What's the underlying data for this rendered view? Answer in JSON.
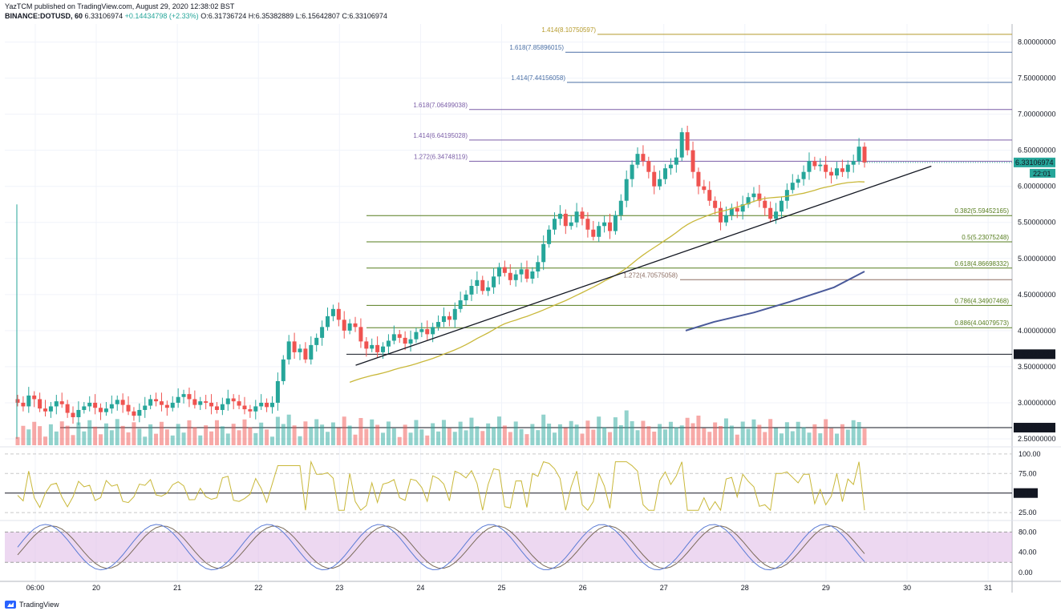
{
  "header": {
    "publisher": "YazTCM published on TradingView.com, August 29, 2020 12:38:02 BST",
    "symbol": "BINANCE:DOTUSD, 60",
    "last": "6.33106974",
    "change": "+0.14434798 (+2.33%)",
    "ohlc": "O:6.31736724 H:6.35382889 L:6.15642807 C:6.33106974"
  },
  "logo": {
    "text": "TradingView",
    "icon": "tradingview-logo-icon"
  },
  "colors": {
    "up": "#26a69a",
    "down": "#ef5350",
    "ma": "#c9b83a",
    "ma2": "#4a5a9a",
    "fib": "#567d1e",
    "ext_purple": "#7b5ea7",
    "ext_blue": "#4a6fa5",
    "ext_gold": "#b59a2a",
    "ext_brown": "#8d6e63",
    "rsi": "#c9b83a",
    "stoch_k": "#5b7bd5",
    "stoch_d": "#7a6a5a",
    "stoch_band": "#e1bee7"
  },
  "chart_data": {
    "type": "candlestick",
    "price_axis": {
      "ticks": [
        "8.00000000",
        "7.50000000",
        "7.00000000",
        "6.50000000",
        "6.00000000",
        "5.50000000",
        "5.00000000",
        "4.50000000",
        "4.00000000",
        "3.50000000",
        "3.00000000",
        "2.50000000"
      ],
      "range": [
        2.4,
        8.25
      ]
    },
    "time_axis": {
      "ticks": [
        "06:00",
        "20",
        "21",
        "22",
        "23",
        "24",
        "25",
        "26",
        "27",
        "28",
        "29",
        "30",
        "31"
      ]
    },
    "last_price_label": "6.33106974",
    "countdown_label": "22:01",
    "level_labels": [
      {
        "text": "3.67341427",
        "price": 3.673
      },
      {
        "text": "2.65469401",
        "price": 2.655
      }
    ],
    "horizontal_levels": [
      {
        "label": "1.414(8.10750597)",
        "price": 8.1075,
        "color": "ext_gold"
      },
      {
        "label": "1.618(7.85896015)",
        "price": 7.859,
        "color": "ext_blue"
      },
      {
        "label": "1.414(7.44156058)",
        "price": 7.4416,
        "color": "ext_blue"
      },
      {
        "label": "1.618(7.06499038)",
        "price": 7.065,
        "color": "ext_purple"
      },
      {
        "label": "1.414(6.64195028)",
        "price": 6.642,
        "color": "ext_purple"
      },
      {
        "label": "1.272(6.34748119)",
        "price": 6.3475,
        "color": "ext_purple"
      },
      {
        "label": "0.382(5.59452165)",
        "price": 5.5945,
        "color": "fib"
      },
      {
        "label": "0.5(5.23075248)",
        "price": 5.2308,
        "color": "fib"
      },
      {
        "label": "0.618(4.86698332)",
        "price": 4.867,
        "color": "fib"
      },
      {
        "label": "1.272(4.70575058)",
        "price": 4.7058,
        "color": "ext_brown"
      },
      {
        "label": "0.786(4.34907468)",
        "price": 4.349,
        "color": "fib"
      },
      {
        "label": "0.886(4.04079573)",
        "price": 4.0408,
        "color": "fib"
      }
    ],
    "trendline": {
      "from": [
        "23.2",
        3.52
      ],
      "to": [
        "30.3",
        6.28
      ]
    },
    "candles_hourly_close": [
      3.0,
      2.95,
      3.1,
      3.05,
      2.92,
      2.88,
      2.95,
      3.02,
      2.98,
      2.86,
      2.8,
      2.9,
      2.95,
      3.0,
      2.93,
      2.87,
      2.92,
      2.98,
      3.04,
      2.97,
      2.88,
      2.82,
      2.9,
      2.96,
      3.05,
      3.02,
      2.97,
      2.93,
      3.0,
      3.08,
      3.12,
      3.05,
      2.97,
      3.02,
      3.0,
      2.95,
      2.9,
      2.98,
      3.06,
      3.02,
      2.96,
      2.91,
      2.88,
      2.95,
      3.0,
      2.94,
      3.0,
      3.3,
      3.6,
      3.85,
      3.7,
      3.75,
      3.6,
      3.8,
      3.9,
      4.05,
      4.2,
      4.3,
      4.15,
      4.0,
      4.1,
      4.05,
      3.85,
      3.75,
      3.8,
      3.7,
      3.78,
      3.86,
      3.95,
      3.9,
      3.82,
      3.88,
      3.98,
      4.02,
      3.95,
      4.05,
      4.12,
      4.2,
      4.15,
      4.3,
      4.42,
      4.5,
      4.62,
      4.7,
      4.55,
      4.6,
      4.75,
      4.88,
      4.8,
      4.7,
      4.78,
      4.85,
      4.72,
      4.82,
      4.95,
      5.2,
      5.4,
      5.55,
      5.62,
      5.45,
      5.5,
      5.65,
      5.55,
      5.4,
      5.3,
      5.45,
      5.5,
      5.38,
      5.6,
      5.8,
      6.1,
      6.3,
      6.45,
      6.35,
      6.2,
      6.0,
      6.1,
      6.25,
      6.3,
      6.4,
      6.75,
      6.5,
      6.2,
      6.0,
      5.95,
      5.8,
      5.7,
      5.5,
      5.6,
      5.7,
      5.65,
      5.75,
      5.85,
      5.9,
      5.8,
      5.7,
      5.55,
      5.65,
      5.8,
      5.95,
      6.05,
      6.1,
      6.2,
      6.35,
      6.28,
      6.3,
      6.2,
      6.15,
      6.25,
      6.2,
      6.3,
      6.35,
      6.55,
      6.33
    ],
    "rsi": {
      "levels": [
        25,
        50,
        75,
        100
      ],
      "tick_labels": [
        "100.00",
        "75.00",
        "50.00",
        "25.00"
      ],
      "marker": "50.00"
    },
    "stoch": {
      "levels": [
        0,
        40,
        80
      ],
      "tick_labels": [
        "80.00",
        "40.00",
        "0.00"
      ]
    }
  }
}
